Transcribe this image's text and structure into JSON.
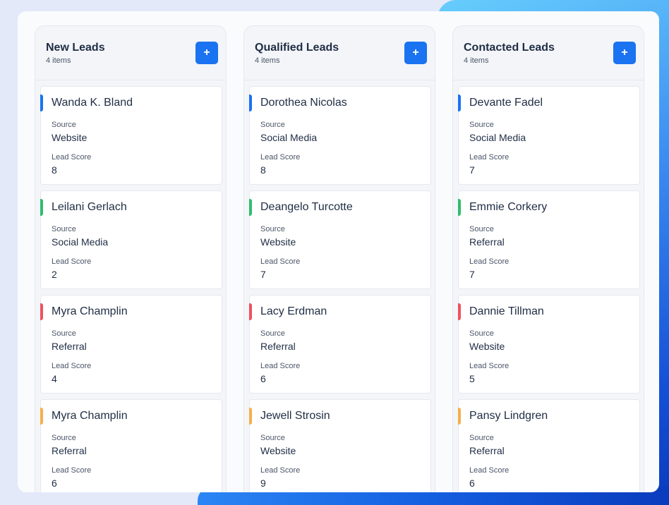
{
  "colors": {
    "accent": "#1a73f0",
    "bar_blue": "#1a73f0",
    "bar_green": "#2ebd6e",
    "bar_red": "#ef5160",
    "bar_orange": "#f4b04c"
  },
  "labels": {
    "source": "Source",
    "lead_score": "Lead Score",
    "add_icon": "+"
  },
  "columns": [
    {
      "title": "New Leads",
      "count": "4 items",
      "cards": [
        {
          "name": "Wanda K. Bland",
          "source": "Website",
          "score": "8",
          "color": "#1a73f0"
        },
        {
          "name": "Leilani Gerlach",
          "source": "Social Media",
          "score": "2",
          "color": "#2ebd6e"
        },
        {
          "name": "Myra Champlin",
          "source": "Referral",
          "score": "4",
          "color": "#ef5160"
        },
        {
          "name": "Myra Champlin",
          "source": "Referral",
          "score": "6",
          "color": "#f4b04c"
        }
      ]
    },
    {
      "title": "Qualified Leads",
      "count": "4 items",
      "cards": [
        {
          "name": "Dorothea Nicolas",
          "source": "Social Media",
          "score": "8",
          "color": "#1a73f0"
        },
        {
          "name": "Deangelo Turcotte",
          "source": "Website",
          "score": "7",
          "color": "#2ebd6e"
        },
        {
          "name": "Lacy Erdman",
          "source": "Referral",
          "score": "6",
          "color": "#ef5160"
        },
        {
          "name": "Jewell Strosin",
          "source": "Website",
          "score": "9",
          "color": "#f4b04c"
        }
      ]
    },
    {
      "title": "Contacted Leads",
      "count": "4 items",
      "cards": [
        {
          "name": "Devante Fadel",
          "source": "Social Media",
          "score": "7",
          "color": "#1a73f0"
        },
        {
          "name": "Emmie Corkery",
          "source": "Referral",
          "score": "7",
          "color": "#2ebd6e"
        },
        {
          "name": "Dannie Tillman",
          "source": "Website",
          "score": "5",
          "color": "#ef5160"
        },
        {
          "name": "Pansy Lindgren",
          "source": "Referral",
          "score": "6",
          "color": "#f4b04c"
        }
      ]
    }
  ]
}
